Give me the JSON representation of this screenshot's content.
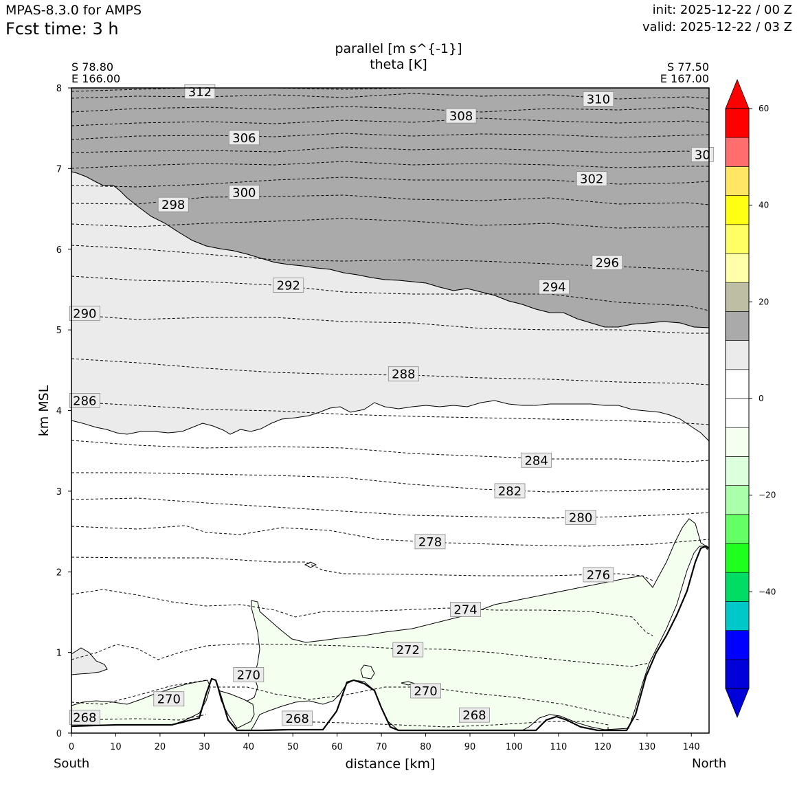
{
  "header": {
    "model": "MPAS-8.3.0 for AMPS",
    "fcst": "Fcst time:    3 h",
    "init": "init: 2025-12-22 / 00 Z",
    "valid": "valid: 2025-12-22 / 03 Z"
  },
  "chart_data": {
    "type": "cross-section",
    "title": "parallel [m s^{-1}]",
    "subtitle": "theta [K]",
    "xlabel": "distance [km]",
    "ylabel": "km MSL",
    "xlim": [
      0,
      144
    ],
    "ylim": [
      0,
      8
    ],
    "x_ticks": [
      "0",
      "10",
      "20",
      "30",
      "40",
      "50",
      "60",
      "70",
      "80",
      "90",
      "100",
      "110",
      "120",
      "130",
      "140"
    ],
    "y_ticks": [
      "0",
      "1",
      "2",
      "3",
      "4",
      "5",
      "6",
      "7",
      "8"
    ],
    "left_end": {
      "lat": "S 78.80",
      "lon": "E 166.00",
      "label": "South"
    },
    "right_end": {
      "lat": "S 77.50",
      "lon": "E 167.00",
      "label": "North"
    },
    "theta_contour_labels": [
      {
        "text": "312",
        "x": 29,
        "y": 7.95
      },
      {
        "text": "310",
        "x": 119,
        "y": 7.86
      },
      {
        "text": "308",
        "x": 88,
        "y": 7.65
      },
      {
        "text": "306",
        "x": 39,
        "y": 7.38
      },
      {
        "text": "30",
        "x": 142.5,
        "y": 7.17
      },
      {
        "text": "302",
        "x": 117.5,
        "y": 6.87
      },
      {
        "text": "300",
        "x": 39,
        "y": 6.7
      },
      {
        "text": "298",
        "x": 23,
        "y": 6.55
      },
      {
        "text": "296",
        "x": 121,
        "y": 5.83
      },
      {
        "text": "294",
        "x": 109,
        "y": 5.53
      },
      {
        "text": "292",
        "x": 49,
        "y": 5.55
      },
      {
        "text": "290",
        "x": 3,
        "y": 5.2
      },
      {
        "text": "288",
        "x": 75,
        "y": 4.45
      },
      {
        "text": "286",
        "x": 3,
        "y": 4.12
      },
      {
        "text": "284",
        "x": 105,
        "y": 3.38
      },
      {
        "text": "282",
        "x": 99,
        "y": 3.0
      },
      {
        "text": "280",
        "x": 115,
        "y": 2.67
      },
      {
        "text": "278",
        "x": 81,
        "y": 2.37
      },
      {
        "text": "276",
        "x": 119,
        "y": 1.96
      },
      {
        "text": "274",
        "x": 89,
        "y": 1.53
      },
      {
        "text": "272",
        "x": 76,
        "y": 1.03
      },
      {
        "text": "270",
        "x": 40,
        "y": 0.72
      },
      {
        "text": "270",
        "x": 22,
        "y": 0.42
      },
      {
        "text": "270",
        "x": 80,
        "y": 0.52
      },
      {
        "text": "268",
        "x": 3,
        "y": 0.19
      },
      {
        "text": "268",
        "x": 51,
        "y": 0.18
      },
      {
        "text": "268",
        "x": 91,
        "y": 0.22
      }
    ],
    "colorbar": {
      "tick_labels": [
        "60",
        "40",
        "20",
        "0",
        "−20",
        "−40"
      ],
      "tick_values": [
        60,
        40,
        20,
        0,
        -20,
        -40
      ],
      "range": [
        -60,
        60
      ],
      "colors": [
        "#0000d8",
        "#0000ff",
        "#00c8c8",
        "#00dc64",
        "#1eff1e",
        "#64ff64",
        "#aaffaa",
        "#dcffdc",
        "#f5fff0",
        "#ffffff",
        "#ffffff",
        "#ebebeb",
        "#aaaaaa",
        "#bebea5",
        "#ffffaa",
        "#ffff64",
        "#ffff14",
        "#ffe664",
        "#ff6e6e",
        "#ff0000"
      ]
    }
  }
}
